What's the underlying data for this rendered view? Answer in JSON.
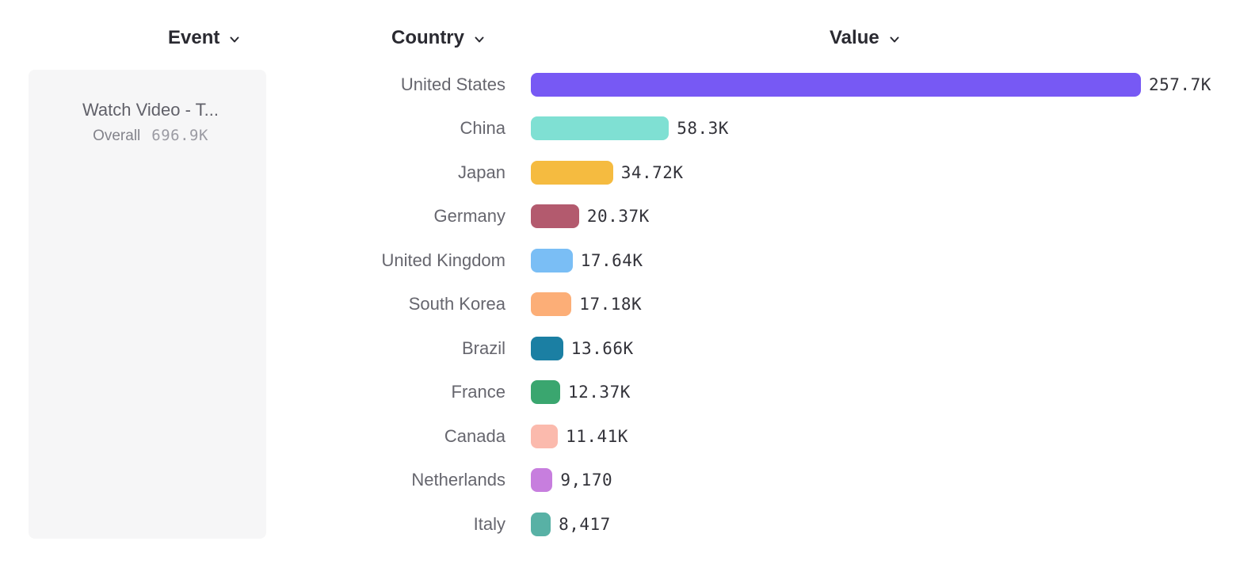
{
  "columns": {
    "event_label": "Event",
    "country_label": "Country",
    "value_label": "Value"
  },
  "event_card": {
    "title": "Watch Video - T...",
    "metric_label": "Overall",
    "metric_value": "696.9K"
  },
  "chart_data": {
    "type": "bar",
    "orientation": "horizontal",
    "title": "",
    "xlabel": "Value",
    "ylabel": "Country",
    "xlim": [
      0,
      257700
    ],
    "grid": false,
    "legend": "none",
    "categories": [
      "United States",
      "China",
      "Japan",
      "Germany",
      "United Kingdom",
      "South Korea",
      "Brazil",
      "France",
      "Canada",
      "Netherlands",
      "Italy"
    ],
    "values": [
      257700,
      58300,
      34720,
      20370,
      17640,
      17180,
      13660,
      12370,
      11410,
      9170,
      8417
    ],
    "value_labels": [
      "257.7K",
      "58.3K",
      "34.72K",
      "20.37K",
      "17.64K",
      "17.18K",
      "13.66K",
      "12.37K",
      "11.41K",
      "9,170",
      "8,417"
    ],
    "colors": [
      "#7759f4",
      "#7fe0d3",
      "#f5bb40",
      "#b35a6e",
      "#7abef5",
      "#fcae77",
      "#1b7fa3",
      "#3aa66f",
      "#fbbaad",
      "#c77ede",
      "#58b1a5"
    ]
  },
  "icons": {
    "chevron_color": "#2a2a31"
  }
}
